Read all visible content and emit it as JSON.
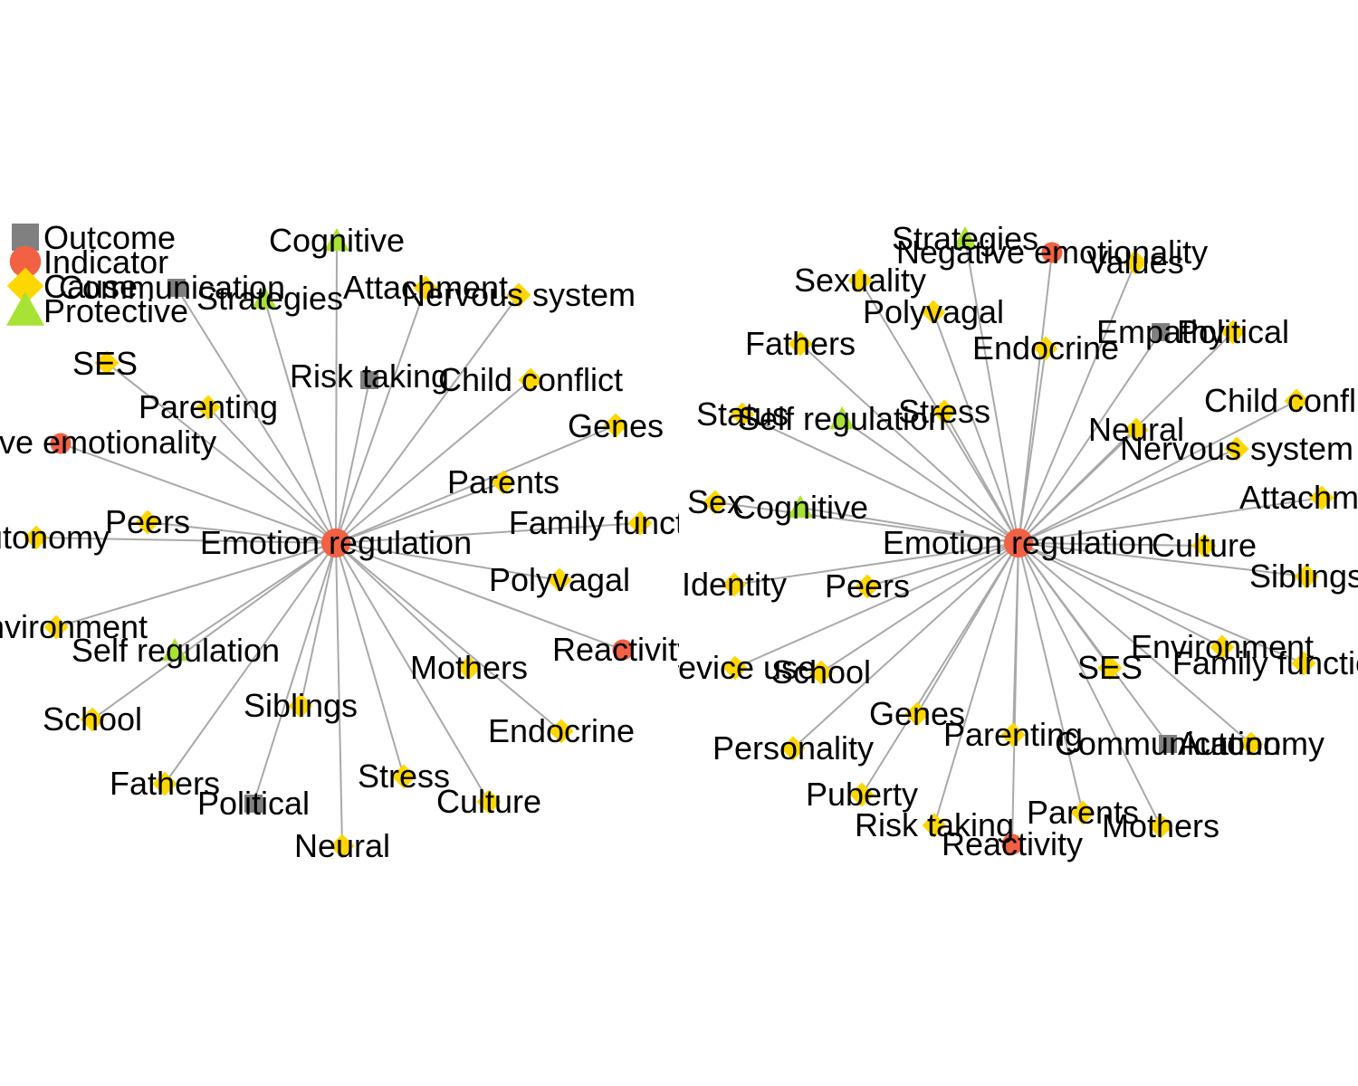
{
  "colors": {
    "background": "#FFFFFF",
    "edge": "#A9A9A9",
    "label": "#000000"
  },
  "legend": [
    {
      "type": "Outcome",
      "label": "Outcome",
      "shape": "square",
      "color": "#808080"
    },
    {
      "type": "Indicator",
      "label": "Indicator",
      "shape": "circle",
      "color": "#F26144"
    },
    {
      "type": "Cause",
      "label": "Cause",
      "shape": "diamond",
      "color": "#FFD700"
    },
    {
      "type": "Protective",
      "label": "Protective",
      "shape": "triangle",
      "color": "#A8E234"
    }
  ],
  "graphs": [
    {
      "name": "left-network",
      "center": {
        "label": "Emotion regulation",
        "type": "Indicator"
      },
      "nodes": [
        {
          "label": "Cognitive",
          "type": "Protective"
        },
        {
          "label": "Communication",
          "type": "Outcome"
        },
        {
          "label": "Strategies",
          "type": "Protective"
        },
        {
          "label": "Attachment",
          "type": "Cause"
        },
        {
          "label": "Nervous system",
          "type": "Cause"
        },
        {
          "label": "SES",
          "type": "Cause"
        },
        {
          "label": "Risk taking",
          "type": "Outcome"
        },
        {
          "label": "Child conflict",
          "type": "Cause"
        },
        {
          "label": "Parenting",
          "type": "Cause"
        },
        {
          "label": "Genes",
          "type": "Cause"
        },
        {
          "label": "Negative emotionality",
          "type": "Indicator"
        },
        {
          "label": "Parents",
          "type": "Cause"
        },
        {
          "label": "Family functioning",
          "type": "Cause"
        },
        {
          "label": "Peers",
          "type": "Cause"
        },
        {
          "label": "Autonomy",
          "type": "Cause"
        },
        {
          "label": "Polyvagal",
          "type": "Cause"
        },
        {
          "label": "Environment",
          "type": "Cause"
        },
        {
          "label": "Reactivity",
          "type": "Indicator"
        },
        {
          "label": "Self regulation",
          "type": "Protective"
        },
        {
          "label": "Mothers",
          "type": "Cause"
        },
        {
          "label": "Siblings",
          "type": "Cause"
        },
        {
          "label": "School",
          "type": "Cause"
        },
        {
          "label": "Endocrine",
          "type": "Cause"
        },
        {
          "label": "Stress",
          "type": "Cause"
        },
        {
          "label": "Fathers",
          "type": "Cause"
        },
        {
          "label": "Culture",
          "type": "Cause"
        },
        {
          "label": "Political",
          "type": "Outcome"
        },
        {
          "label": "Neural",
          "type": "Cause"
        }
      ]
    },
    {
      "name": "right-network",
      "center": {
        "label": "Emotion regulation",
        "type": "Indicator"
      },
      "nodes": [
        {
          "label": "Strategies",
          "type": "Protective"
        },
        {
          "label": "Negative emotionality",
          "type": "Indicator"
        },
        {
          "label": "Values",
          "type": "Cause"
        },
        {
          "label": "Sexuality",
          "type": "Cause"
        },
        {
          "label": "Polyvagal",
          "type": "Cause"
        },
        {
          "label": "Empathy",
          "type": "Outcome"
        },
        {
          "label": "Political",
          "type": "Cause"
        },
        {
          "label": "Fathers",
          "type": "Cause"
        },
        {
          "label": "Endocrine",
          "type": "Cause"
        },
        {
          "label": "Status",
          "type": "Cause"
        },
        {
          "label": "Self regulation",
          "type": "Protective"
        },
        {
          "label": "Stress",
          "type": "Cause"
        },
        {
          "label": "Child conflict",
          "type": "Cause"
        },
        {
          "label": "Neural",
          "type": "Cause"
        },
        {
          "label": "Nervous system",
          "type": "Cause"
        },
        {
          "label": "Sex",
          "type": "Cause"
        },
        {
          "label": "Cognitive",
          "type": "Protective"
        },
        {
          "label": "Attachment",
          "type": "Cause"
        },
        {
          "label": "Culture",
          "type": "Cause"
        },
        {
          "label": "Identity",
          "type": "Cause"
        },
        {
          "label": "Peers",
          "type": "Cause"
        },
        {
          "label": "Siblings",
          "type": "Cause"
        },
        {
          "label": "Environment",
          "type": "Cause"
        },
        {
          "label": "Family functioning",
          "type": "Cause"
        },
        {
          "label": "Device use",
          "type": "Cause"
        },
        {
          "label": "School",
          "type": "Cause"
        },
        {
          "label": "SES",
          "type": "Cause"
        },
        {
          "label": "Genes",
          "type": "Cause"
        },
        {
          "label": "Parenting",
          "type": "Cause"
        },
        {
          "label": "Communication",
          "type": "Outcome"
        },
        {
          "label": "Autonomy",
          "type": "Cause"
        },
        {
          "label": "Personality",
          "type": "Cause"
        },
        {
          "label": "Puberty",
          "type": "Cause"
        },
        {
          "label": "Risk taking",
          "type": "Cause"
        },
        {
          "label": "Reactivity",
          "type": "Indicator"
        },
        {
          "label": "Parents",
          "type": "Cause"
        },
        {
          "label": "Mothers",
          "type": "Cause"
        }
      ]
    }
  ]
}
